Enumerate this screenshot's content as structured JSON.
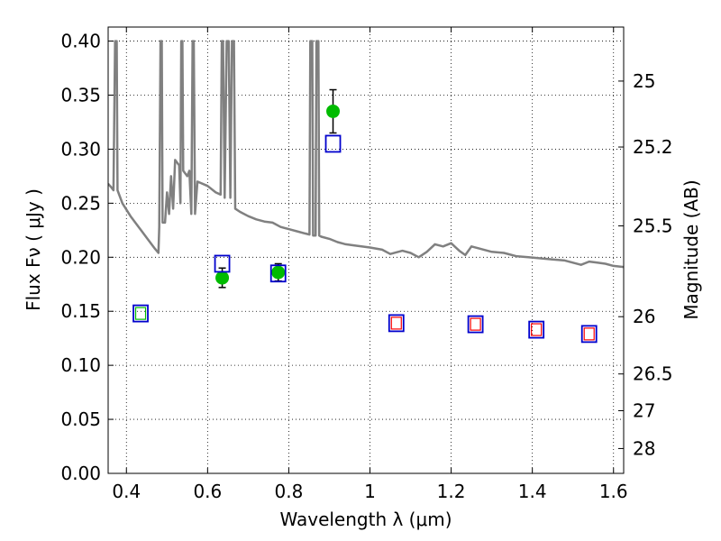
{
  "chart_data": {
    "type": "scatter",
    "title": "",
    "xlabel": "Wavelength  λ (μm)",
    "ylabel": "Flux  Fν (  μJy )",
    "ylabel_right": "Magnitude (AB)",
    "xlim": [
      0.355,
      1.625
    ],
    "ylim": [
      0.0,
      0.413
    ],
    "grid": true,
    "x_ticks": [
      0.4,
      0.6,
      0.8,
      1.0,
      1.2,
      1.4,
      1.6
    ],
    "x_tick_labels": [
      "0.4",
      "0.6",
      "0.8",
      "1",
      "1.2",
      "1.4",
      "1.6"
    ],
    "y_ticks": [
      0.0,
      0.05,
      0.1,
      0.15,
      0.2,
      0.25,
      0.3,
      0.35,
      0.4
    ],
    "y_tick_labels": [
      "0.00",
      "0.05",
      "0.10",
      "0.15",
      "0.20",
      "0.25",
      "0.30",
      "0.35",
      "0.40"
    ],
    "right_ticks": [
      {
        "label": "25",
        "flux": 0.363
      },
      {
        "label": "25.2",
        "flux": 0.302
      },
      {
        "label": "25.5",
        "flux": 0.229
      },
      {
        "label": "26",
        "flux": 0.145
      },
      {
        "label": "26.5",
        "flux": 0.092
      },
      {
        "label": "27",
        "flux": 0.058
      },
      {
        "label": "28",
        "flux": 0.023
      }
    ],
    "series": [
      {
        "kind": "line",
        "color": "#808080",
        "points": [
          [
            0.355,
            0.268
          ],
          [
            0.362,
            0.265
          ],
          [
            0.368,
            0.262
          ],
          [
            0.372,
            0.4
          ],
          [
            0.376,
            0.4
          ],
          [
            0.378,
            0.262
          ],
          [
            0.39,
            0.25
          ],
          [
            0.41,
            0.238
          ],
          [
            0.43,
            0.228
          ],
          [
            0.45,
            0.218
          ],
          [
            0.47,
            0.208
          ],
          [
            0.479,
            0.204
          ],
          [
            0.481,
            0.228
          ],
          [
            0.484,
            0.4
          ],
          [
            0.487,
            0.4
          ],
          [
            0.489,
            0.232
          ],
          [
            0.495,
            0.232
          ],
          [
            0.5,
            0.26
          ],
          [
            0.505,
            0.24
          ],
          [
            0.51,
            0.275
          ],
          [
            0.515,
            0.245
          ],
          [
            0.52,
            0.29
          ],
          [
            0.53,
            0.285
          ],
          [
            0.533,
            0.25
          ],
          [
            0.535,
            0.4
          ],
          [
            0.538,
            0.4
          ],
          [
            0.54,
            0.28
          ],
          [
            0.55,
            0.275
          ],
          [
            0.555,
            0.28
          ],
          [
            0.56,
            0.24
          ],
          [
            0.563,
            0.4
          ],
          [
            0.566,
            0.4
          ],
          [
            0.569,
            0.24
          ],
          [
            0.575,
            0.27
          ],
          [
            0.6,
            0.266
          ],
          [
            0.62,
            0.26
          ],
          [
            0.632,
            0.258
          ],
          [
            0.635,
            0.4
          ],
          [
            0.638,
            0.4
          ],
          [
            0.642,
            0.255
          ],
          [
            0.647,
            0.4
          ],
          [
            0.652,
            0.4
          ],
          [
            0.656,
            0.255
          ],
          [
            0.66,
            0.4
          ],
          [
            0.665,
            0.4
          ],
          [
            0.668,
            0.245
          ],
          [
            0.68,
            0.242
          ],
          [
            0.7,
            0.238
          ],
          [
            0.72,
            0.235
          ],
          [
            0.74,
            0.233
          ],
          [
            0.76,
            0.232
          ],
          [
            0.78,
            0.228
          ],
          [
            0.8,
            0.226
          ],
          [
            0.82,
            0.224
          ],
          [
            0.84,
            0.222
          ],
          [
            0.851,
            0.221
          ],
          [
            0.853,
            0.4
          ],
          [
            0.858,
            0.4
          ],
          [
            0.86,
            0.22
          ],
          [
            0.866,
            0.22
          ],
          [
            0.868,
            0.4
          ],
          [
            0.873,
            0.4
          ],
          [
            0.875,
            0.22
          ],
          [
            0.88,
            0.219
          ],
          [
            0.9,
            0.217
          ],
          [
            0.92,
            0.214
          ],
          [
            0.94,
            0.212
          ],
          [
            0.96,
            0.211
          ],
          [
            1.0,
            0.209
          ],
          [
            1.03,
            0.207
          ],
          [
            1.05,
            0.203
          ],
          [
            1.08,
            0.206
          ],
          [
            1.1,
            0.204
          ],
          [
            1.12,
            0.2
          ],
          [
            1.14,
            0.205
          ],
          [
            1.16,
            0.212
          ],
          [
            1.18,
            0.21
          ],
          [
            1.2,
            0.213
          ],
          [
            1.22,
            0.206
          ],
          [
            1.235,
            0.202
          ],
          [
            1.25,
            0.21
          ],
          [
            1.27,
            0.208
          ],
          [
            1.3,
            0.205
          ],
          [
            1.33,
            0.204
          ],
          [
            1.36,
            0.201
          ],
          [
            1.39,
            0.2
          ],
          [
            1.42,
            0.199
          ],
          [
            1.45,
            0.198
          ],
          [
            1.48,
            0.197
          ],
          [
            1.5,
            0.195
          ],
          [
            1.52,
            0.193
          ],
          [
            1.54,
            0.196
          ],
          [
            1.56,
            0.195
          ],
          [
            1.58,
            0.194
          ],
          [
            1.6,
            0.192
          ],
          [
            1.625,
            0.191
          ]
        ]
      },
      {
        "kind": "observed",
        "color": "#00bb00",
        "points": [
          {
            "x": 0.636,
            "y": 0.181,
            "err": 0.009
          },
          {
            "x": 0.774,
            "y": 0.186,
            "err": 0.008
          },
          {
            "x": 0.909,
            "y": 0.335,
            "err": 0.02
          }
        ]
      },
      {
        "kind": "model-square",
        "color": "#0000cc",
        "points": [
          {
            "x": 0.435,
            "y": 0.148
          },
          {
            "x": 0.636,
            "y": 0.194
          },
          {
            "x": 0.774,
            "y": 0.185
          },
          {
            "x": 0.909,
            "y": 0.305
          },
          {
            "x": 1.065,
            "y": 0.139
          },
          {
            "x": 1.26,
            "y": 0.138
          },
          {
            "x": 1.41,
            "y": 0.133
          },
          {
            "x": 1.54,
            "y": 0.129
          }
        ]
      },
      {
        "kind": "inner-square",
        "color": "#ff0000",
        "points": [
          {
            "x": 1.065,
            "y": 0.139
          },
          {
            "x": 1.26,
            "y": 0.138
          },
          {
            "x": 1.41,
            "y": 0.133
          },
          {
            "x": 1.54,
            "y": 0.129
          }
        ]
      },
      {
        "kind": "inner-square",
        "color": "#00bb00",
        "points": [
          {
            "x": 0.435,
            "y": 0.148
          }
        ]
      }
    ]
  }
}
